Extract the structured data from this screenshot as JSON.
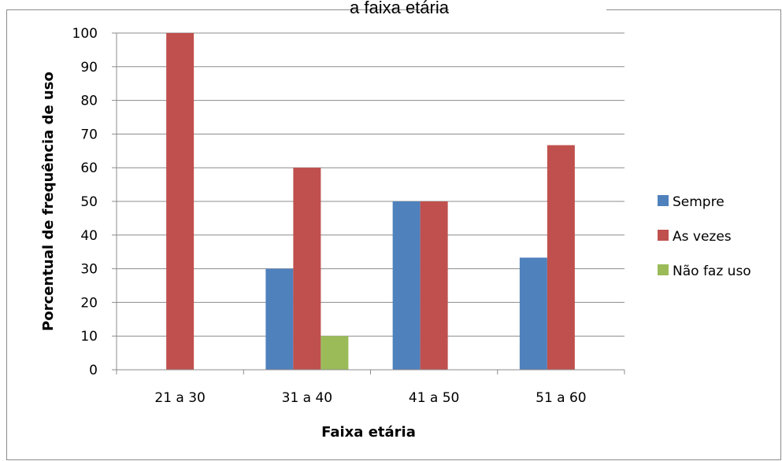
{
  "chart_data": {
    "type": "bar",
    "title": "a faixa etária",
    "xlabel": "Faixa etária",
    "ylabel": "Porcentual de frequência de uso",
    "categories": [
      "21 a 30",
      "31 a 40",
      "41 a 50",
      "51 a 60"
    ],
    "series": [
      {
        "name": "Sempre",
        "color": "#4F81BD",
        "values": [
          0,
          30,
          50,
          33.3
        ]
      },
      {
        "name": "As vezes",
        "color": "#C0504D",
        "values": [
          100,
          60,
          50,
          66.7
        ]
      },
      {
        "name": "Não faz uso",
        "color": "#9BBB59",
        "values": [
          0,
          10,
          0,
          0
        ]
      }
    ],
    "ylim": [
      0,
      100
    ],
    "yticks": [
      "0",
      "10",
      "20",
      "30",
      "40",
      "50",
      "60",
      "70",
      "80",
      "90",
      "100"
    ],
    "grid": true,
    "legend_position": "right"
  }
}
